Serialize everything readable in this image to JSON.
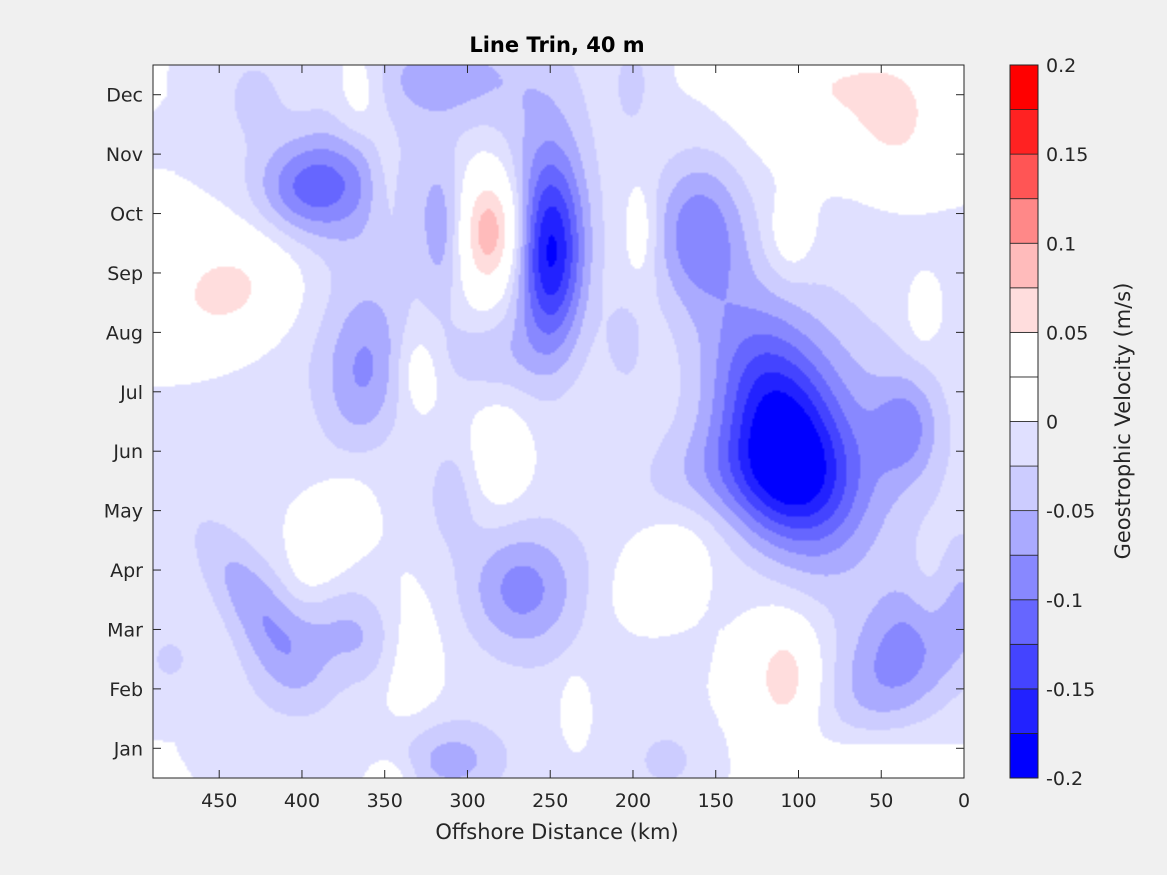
{
  "chart_data": {
    "type": "contour",
    "title": "Line Trin, 40 m",
    "xlabel": "Offshore Distance (km)",
    "colorbar_label": "Geostrophic Velocity (m/s)",
    "x_axis": {
      "direction": "reversed",
      "xlim": [
        490,
        0
      ],
      "ticks": [
        450,
        400,
        350,
        300,
        250,
        200,
        150,
        100,
        50,
        0
      ]
    },
    "y_axis": {
      "ylim": [
        0.5,
        12.5
      ],
      "ticks": [
        1,
        2,
        3,
        4,
        5,
        6,
        7,
        8,
        9,
        10,
        11,
        12
      ],
      "tick_labels": [
        "Jan",
        "Feb",
        "Mar",
        "Apr",
        "May",
        "Jun",
        "Jul",
        "Aug",
        "Sep",
        "Oct",
        "Nov",
        "Dec"
      ]
    },
    "colorbar": {
      "range": [
        -0.2,
        0.2
      ],
      "levels": 16,
      "colors": [
        "#0000ff",
        "#2222ff",
        "#4444ff",
        "#6666ff",
        "#8888ff",
        "#aaaaff",
        "#ccccff",
        "#e0e0ff",
        "#ffffff",
        "#ffffff",
        "#ffdddd",
        "#ffbbbb",
        "#ff8888",
        "#ff5555",
        "#ff2222",
        "#ff0000"
      ],
      "ticks": [
        -0.2,
        -0.15,
        -0.1,
        -0.05,
        0,
        0.05,
        0.1,
        0.15,
        0.2
      ],
      "tick_labels": [
        "-0.2",
        "-0.15",
        "-0.1",
        "-0.05",
        "0",
        "0.05",
        "0.1",
        "0.15",
        "0.2"
      ]
    },
    "features": [
      {
        "x": 440,
        "month": 8.7,
        "value": 0.08,
        "sx": 30,
        "sy": 0.9,
        "rot": 55
      },
      {
        "x": 380,
        "month": 10.6,
        "value": -0.06,
        "sx": 28,
        "sy": 0.7,
        "rot": -15
      },
      {
        "x": 362,
        "month": 7.3,
        "value": -0.07,
        "sx": 18,
        "sy": 1.0,
        "rot": 5
      },
      {
        "x": 400,
        "month": 10.4,
        "value": -0.05,
        "sx": 20,
        "sy": 0.5,
        "rot": 0
      },
      {
        "x": 395,
        "month": 9.0,
        "value": -0.035,
        "sx": 40,
        "sy": 1.8,
        "rot": 30
      },
      {
        "x": 315,
        "month": 12.3,
        "value": -0.06,
        "sx": 35,
        "sy": 0.6,
        "rot": 0
      },
      {
        "x": 365,
        "month": 12.0,
        "value": 0.04,
        "sx": 10,
        "sy": 0.6,
        "rot": 0
      },
      {
        "x": 350,
        "month": 10.6,
        "value": 0.03,
        "sx": 8,
        "sy": 0.7,
        "rot": 0
      },
      {
        "x": 285,
        "month": 9.7,
        "value": 0.11,
        "sx": 15,
        "sy": 0.75,
        "rot": 0
      },
      {
        "x": 250,
        "month": 9.3,
        "value": -0.14,
        "sx": 14,
        "sy": 1.1,
        "rot": 0
      },
      {
        "x": 252,
        "month": 10.2,
        "value": -0.05,
        "sx": 22,
        "sy": 1.9,
        "rot": 0
      },
      {
        "x": 315,
        "month": 9.7,
        "value": -0.06,
        "sx": 10,
        "sy": 0.9,
        "rot": 0
      },
      {
        "x": 290,
        "month": 7.6,
        "value": -0.035,
        "sx": 25,
        "sy": 0.5,
        "rot": 0
      },
      {
        "x": 330,
        "month": 7.4,
        "value": 0.04,
        "sx": 10,
        "sy": 0.5,
        "rot": 0
      },
      {
        "x": 200,
        "month": 12.2,
        "value": -0.03,
        "sx": 10,
        "sy": 0.7,
        "rot": 0
      },
      {
        "x": 205,
        "month": 7.8,
        "value": -0.03,
        "sx": 9,
        "sy": 0.6,
        "rot": 0
      },
      {
        "x": 160,
        "month": 9.7,
        "value": -0.09,
        "sx": 20,
        "sy": 0.9,
        "rot": 0
      },
      {
        "x": 195,
        "month": 9.7,
        "value": 0.035,
        "sx": 7,
        "sy": 0.6,
        "rot": 0
      },
      {
        "x": 105,
        "month": 9.6,
        "value": 0.035,
        "sx": 10,
        "sy": 0.5,
        "rot": 0
      },
      {
        "x": 110,
        "month": 6.3,
        "value": -0.15,
        "sx": 25,
        "sy": 1.4,
        "rot": -15
      },
      {
        "x": 130,
        "month": 5.5,
        "value": -0.07,
        "sx": 40,
        "sy": 0.7,
        "rot": 0
      },
      {
        "x": 80,
        "month": 6.5,
        "value": -0.05,
        "sx": 45,
        "sy": 1.8,
        "rot": -15
      },
      {
        "x": 75,
        "month": 12.1,
        "value": 0.05,
        "sx": 40,
        "sy": 0.8,
        "rot": 0
      },
      {
        "x": 40,
        "month": 11.5,
        "value": 0.04,
        "sx": 15,
        "sy": 0.6,
        "rot": 0
      },
      {
        "x": 35,
        "month": 6.4,
        "value": -0.06,
        "sx": 14,
        "sy": 0.6,
        "rot": 0
      },
      {
        "x": 30,
        "month": 2.7,
        "value": -0.09,
        "sx": 25,
        "sy": 1.2,
        "rot": 35
      },
      {
        "x": 20,
        "month": 3.5,
        "value": 0.035,
        "sx": 10,
        "sy": 0.7,
        "rot": 0
      },
      {
        "x": 25,
        "month": 8.3,
        "value": 0.03,
        "sx": 7,
        "sy": 0.4,
        "rot": 0
      },
      {
        "x": 180,
        "month": 4.2,
        "value": 0.035,
        "sx": 18,
        "sy": 1.0,
        "rot": 40
      },
      {
        "x": 108,
        "month": 2.2,
        "value": 0.07,
        "sx": 15,
        "sy": 0.7,
        "rot": 0
      },
      {
        "x": 60,
        "month": 0.5,
        "value": 0.05,
        "sx": 30,
        "sy": 0.5,
        "rot": 0
      },
      {
        "x": 270,
        "month": 3.7,
        "value": -0.06,
        "sx": 22,
        "sy": 0.7,
        "rot": 0
      },
      {
        "x": 250,
        "month": 3.5,
        "value": -0.03,
        "sx": 35,
        "sy": 1.1,
        "rot": 0
      },
      {
        "x": 280,
        "month": 5.9,
        "value": 0.04,
        "sx": 12,
        "sy": 0.6,
        "rot": 0
      },
      {
        "x": 310,
        "month": 5.3,
        "value": -0.035,
        "sx": 12,
        "sy": 0.7,
        "rot": 0
      },
      {
        "x": 335,
        "month": 2.5,
        "value": 0.04,
        "sx": 13,
        "sy": 0.7,
        "rot": 0
      },
      {
        "x": 365,
        "month": 2.9,
        "value": -0.05,
        "sx": 20,
        "sy": 0.7,
        "rot": -40
      },
      {
        "x": 430,
        "month": 3.5,
        "value": -0.06,
        "sx": 15,
        "sy": 1.1,
        "rot": -30
      },
      {
        "x": 410,
        "month": 2.4,
        "value": -0.035,
        "sx": 22,
        "sy": 0.8,
        "rot": 0
      },
      {
        "x": 480,
        "month": 2.5,
        "value": -0.03,
        "sx": 12,
        "sy": 0.4,
        "rot": 0
      },
      {
        "x": 385,
        "month": 4.5,
        "value": 0.04,
        "sx": 12,
        "sy": 0.8,
        "rot": 20
      },
      {
        "x": 310,
        "month": 0.8,
        "value": -0.06,
        "sx": 25,
        "sy": 0.5,
        "rot": 0
      },
      {
        "x": 180,
        "month": 0.8,
        "value": -0.035,
        "sx": 15,
        "sy": 0.4,
        "rot": 0
      },
      {
        "x": 345,
        "month": 0.5,
        "value": 0.03,
        "sx": 10,
        "sy": 0.3,
        "rot": 0
      },
      {
        "x": 235,
        "month": 1.8,
        "value": 0.025,
        "sx": 6,
        "sy": 0.4,
        "rot": 0
      },
      {
        "x": 430,
        "month": 12.0,
        "value": -0.03,
        "sx": 15,
        "sy": 0.6,
        "rot": 0
      }
    ]
  }
}
